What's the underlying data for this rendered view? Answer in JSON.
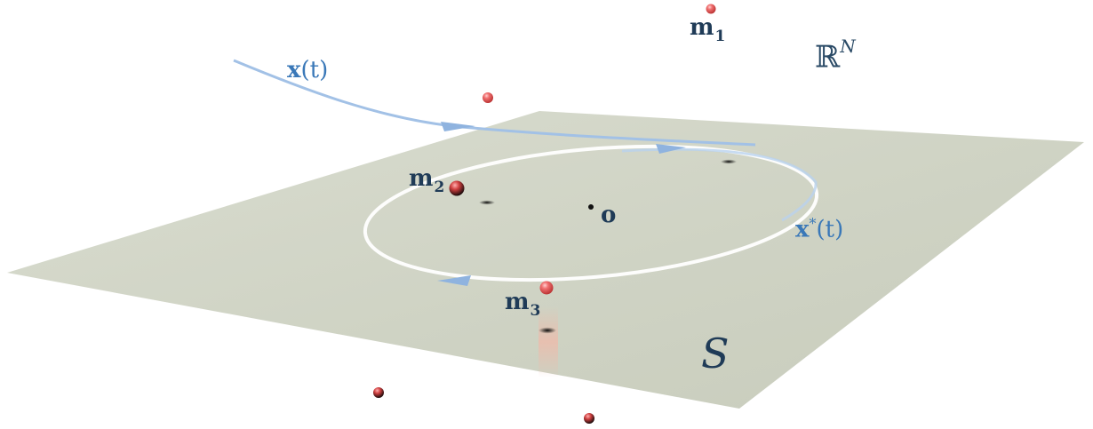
{
  "labels": {
    "m1": {
      "base": "m",
      "sub": "1"
    },
    "m2": {
      "base": "m",
      "sub": "2"
    },
    "m3": {
      "base": "m",
      "sub": "3"
    },
    "origin": "o",
    "x_t": {
      "bold": "x",
      "rest": "(t)"
    },
    "x_star_t": {
      "bold": "x",
      "sup": "*",
      "rest": "(t)"
    },
    "space": {
      "base": "ℝ",
      "sup": "N"
    },
    "surface": "S"
  },
  "colors": {
    "plane": "#d3d6c8",
    "trajectory": "#9dbde3",
    "orbit": "#ffffff",
    "point": "#e85a5a",
    "label": "#1f3b57",
    "trajectory_label": "#3a78b8"
  }
}
